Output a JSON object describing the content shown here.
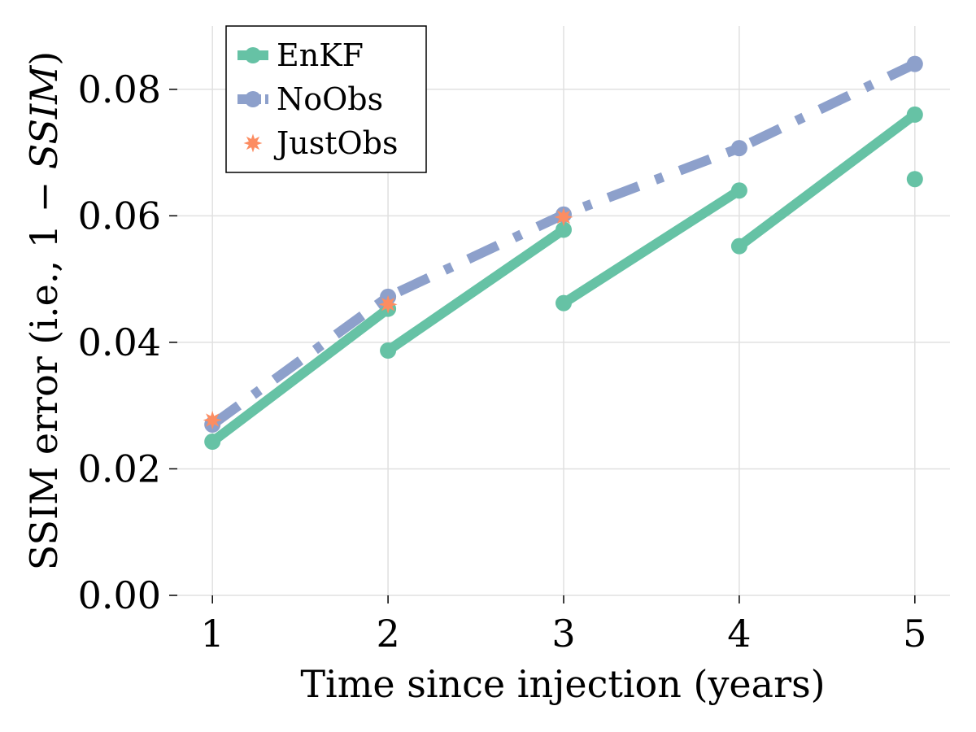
{
  "chart_data": {
    "type": "line",
    "title": "",
    "xlabel": "Time since injection (years)",
    "ylabel": "SSIM error (i.e., 1 − SSIM)",
    "xlim": [
      0.8,
      5.2
    ],
    "ylim": [
      0,
      0.09
    ],
    "xticks": [
      1,
      2,
      3,
      4,
      5
    ],
    "xtick_labels": [
      "1",
      "2",
      "3",
      "4",
      "5"
    ],
    "yticks": [
      0,
      0.02,
      0.04,
      0.06,
      0.08
    ],
    "ytick_labels": [
      "0.00",
      "0.02",
      "0.04",
      "0.06",
      "0.08"
    ],
    "grid": true,
    "legend_position": "top-left",
    "series": [
      {
        "name": "EnKF",
        "color": "#66c2a5",
        "style": "solid",
        "marker": "circle",
        "segments": [
          [
            [
              1,
              0.0243
            ],
            [
              2,
              0.0453
            ]
          ],
          [
            [
              2,
              0.0387
            ],
            [
              3,
              0.0578
            ]
          ],
          [
            [
              3,
              0.0462
            ],
            [
              4,
              0.064
            ]
          ],
          [
            [
              4,
              0.0552
            ],
            [
              5,
              0.076
            ]
          ],
          [
            [
              5,
              0.0658
            ]
          ]
        ]
      },
      {
        "name": "NoObs",
        "color": "#8da0cb",
        "style": "dashdot",
        "marker": "circle",
        "segments": [
          [
            [
              1,
              0.027
            ],
            [
              2,
              0.0472
            ],
            [
              3,
              0.0602
            ],
            [
              4,
              0.0707
            ],
            [
              5,
              0.084
            ]
          ]
        ]
      },
      {
        "name": "JustObs",
        "color": "#fc8d62",
        "style": "none",
        "marker": "star",
        "segments": [
          [
            [
              1,
              0.0277
            ],
            [
              2,
              0.046
            ],
            [
              3,
              0.0598
            ]
          ]
        ]
      }
    ]
  }
}
